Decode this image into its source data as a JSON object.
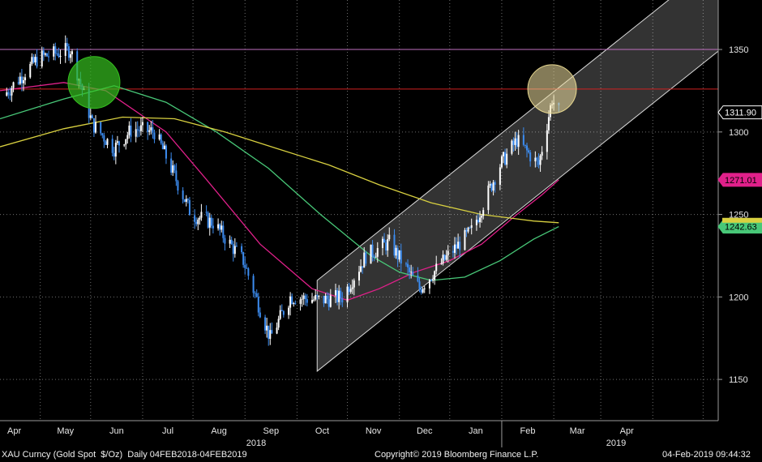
{
  "footer": {
    "left": "XAU Curncy (Gold Spot  $/Oz)  Daily 04FEB2018-04FEB2019",
    "center": "Copyright© 2019 Bloomberg Finance L.P.",
    "right": "04-Feb-2019 09:44:32"
  },
  "colors": {
    "background": "#000000",
    "up_bar": "#ffffff",
    "down_bar": "#3c8cf0",
    "ma_fast": "#e0208a",
    "ma_mid": "#48c878",
    "ma_slow": "#d8d040",
    "level_1350": "#c070c0",
    "level_1326": "#d02020",
    "channel_fill": "#ffffff",
    "green_circle": "#36c020",
    "tan_circle": "#f0e0a0"
  },
  "chart_data": {
    "type": "line",
    "instrument": "XAU Curncy (Gold Spot $/Oz)",
    "frequency": "Daily",
    "ylim": [
      1125,
      1380
    ],
    "y_ticks": [
      1150,
      1200,
      1250,
      1300,
      1350
    ],
    "x_ticks": [
      "Apr",
      "May",
      "Jun",
      "Jul",
      "Aug",
      "Sep",
      "Oct",
      "Nov",
      "Dec",
      "Jan",
      "Feb",
      "Mar",
      "Apr"
    ],
    "year_labels": [
      "2018",
      "2019"
    ],
    "x_range": [
      "2018-03-08",
      "2019-05-10"
    ],
    "price_series": {
      "name": "Price",
      "x": [
        "2018-03-10",
        "2018-03-31",
        "2018-04-19",
        "2018-05-02",
        "2018-05-15",
        "2018-05-26",
        "2018-06-08",
        "2018-06-15",
        "2018-06-30",
        "2018-07-13",
        "2018-07-31",
        "2018-08-16",
        "2018-08-28",
        "2018-09-15",
        "2018-09-28",
        "2018-10-12",
        "2018-10-26",
        "2018-11-13",
        "2018-11-30",
        "2018-12-14",
        "2018-12-31",
        "2019-01-10",
        "2019-01-23",
        "2019-01-31",
        "2019-02-04"
      ],
      "y": [
        1322,
        1345,
        1350,
        1305,
        1290,
        1302,
        1300,
        1285,
        1250,
        1245,
        1222,
        1175,
        1200,
        1198,
        1200,
        1225,
        1233,
        1205,
        1225,
        1240,
        1280,
        1295,
        1280,
        1320,
        1311.9
      ]
    },
    "series": [
      {
        "name": "",
        "last": 1271.01,
        "x": [
          "2018-03-08",
          "2018-04-15",
          "2018-05-10",
          "2018-06-15",
          "2018-07-10",
          "2018-08-10",
          "2018-09-10",
          "2018-10-01",
          "2018-10-20",
          "2018-11-10",
          "2018-12-01",
          "2018-12-20",
          "2019-01-10",
          "2019-01-25",
          "2019-02-04"
        ],
        "y": [
          1325,
          1330,
          1325,
          1300,
          1270,
          1232,
          1205,
          1198,
          1205,
          1215,
          1222,
          1232,
          1250,
          1262,
          1271.01
        ]
      },
      {
        "name": "",
        "last": 1242.63,
        "x": [
          "2018-03-08",
          "2018-04-15",
          "2018-05-15",
          "2018-06-15",
          "2018-07-15",
          "2018-08-15",
          "2018-09-15",
          "2018-10-15",
          "2018-11-01",
          "2018-11-20",
          "2018-12-10",
          "2018-12-31",
          "2019-01-20",
          "2019-02-04"
        ],
        "y": [
          1308,
          1320,
          1328,
          1318,
          1300,
          1278,
          1250,
          1225,
          1215,
          1210,
          1212,
          1222,
          1235,
          1242.63
        ]
      },
      {
        "name": "",
        "last": 1245,
        "x": [
          "2018-03-08",
          "2018-04-15",
          "2018-05-20",
          "2018-06-20",
          "2018-07-20",
          "2018-08-20",
          "2018-09-20",
          "2018-10-20",
          "2018-11-20",
          "2018-12-20",
          "2019-01-20",
          "2019-02-04"
        ],
        "y": [
          1291,
          1302,
          1309,
          1308,
          1300,
          1290,
          1280,
          1268,
          1257,
          1250,
          1246,
          1245
        ]
      }
    ],
    "horizontal_levels": [
      1350,
      1326
    ],
    "channel": {
      "x": [
        "2018-09-13",
        "2019-05-10"
      ],
      "lower": [
        1155,
        1349
      ],
      "upper": [
        1210,
        1404
      ]
    },
    "highlight_circles": [
      {
        "x": "2018-05-03",
        "y": 1330
      },
      {
        "x": "2019-01-31",
        "y": 1326
      }
    ],
    "value_tags": [
      {
        "value": 1311.9,
        "label": "1311.90"
      },
      {
        "value": 1271.01,
        "label": "1271.01"
      },
      {
        "value": 1242.63,
        "label": "1242.63"
      }
    ]
  }
}
